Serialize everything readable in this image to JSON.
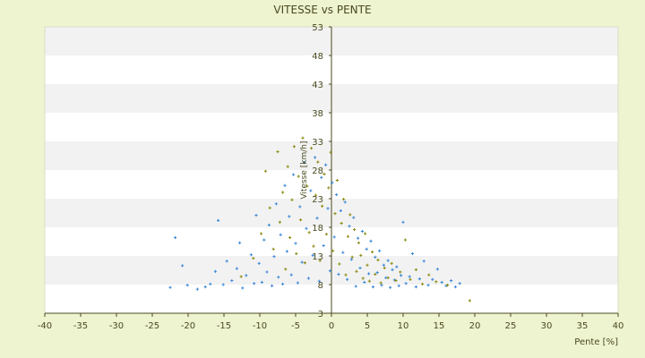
{
  "chart_data": {
    "type": "scatter",
    "title": "VITESSE vs PENTE",
    "xlabel": "Pente [%]",
    "ylabel": "Vitesse [km/h]",
    "xlim": [
      -40,
      40
    ],
    "ylim": [
      3,
      53
    ],
    "x_ticks": [
      -40,
      -35,
      -30,
      -25,
      -20,
      -15,
      -10,
      -5,
      0,
      5,
      10,
      15,
      20,
      25,
      30,
      35,
      40
    ],
    "y_ticks": [
      3,
      8,
      13,
      18,
      23,
      28,
      33,
      38,
      43,
      48,
      53
    ],
    "grid": "horizontal alternating bands",
    "legend": "none",
    "series": [
      {
        "color": "#3a87d6",
        "marker": "plus",
        "values": [
          [
            -22.5,
            7.5
          ],
          [
            -21.8,
            16.2
          ],
          [
            -20.8,
            11.3
          ],
          [
            -20.1,
            7.9
          ],
          [
            -18.7,
            7.2
          ],
          [
            -17.6,
            7.6
          ],
          [
            -16.9,
            8.1
          ],
          [
            -16.2,
            10.3
          ],
          [
            -15.8,
            19.2
          ],
          [
            -15.1,
            8.0
          ],
          [
            -14.6,
            12.1
          ],
          [
            -13.9,
            8.7
          ],
          [
            -13.2,
            10.8
          ],
          [
            -12.8,
            15.3
          ],
          [
            -12.4,
            7.4
          ],
          [
            -11.9,
            9.6
          ],
          [
            -11.2,
            13.2
          ],
          [
            -10.8,
            8.2
          ],
          [
            -10.5,
            20.1
          ],
          [
            -10.1,
            11.7
          ],
          [
            -9.7,
            8.4
          ],
          [
            -9.4,
            15.8
          ],
          [
            -9.0,
            10.2
          ],
          [
            -8.7,
            18.4
          ],
          [
            -8.3,
            7.8
          ],
          [
            -8.0,
            12.9
          ],
          [
            -7.7,
            22.1
          ],
          [
            -7.4,
            9.3
          ],
          [
            -7.1,
            16.7
          ],
          [
            -6.8,
            8.1
          ],
          [
            -6.5,
            25.3
          ],
          [
            -6.2,
            13.8
          ],
          [
            -5.9,
            19.9
          ],
          [
            -5.6,
            9.7
          ],
          [
            -5.3,
            27.2
          ],
          [
            -5.0,
            15.2
          ],
          [
            -4.7,
            8.3
          ],
          [
            -4.4,
            21.6
          ],
          [
            -4.1,
            11.9
          ],
          [
            -3.8,
            29.3
          ],
          [
            -3.5,
            17.8
          ],
          [
            -3.2,
            9.1
          ],
          [
            -2.9,
            24.4
          ],
          [
            -2.6,
            13.1
          ],
          [
            -2.3,
            30.2
          ],
          [
            -2.0,
            19.6
          ],
          [
            -1.7,
            8.6
          ],
          [
            -1.4,
            26.7
          ],
          [
            -1.1,
            14.8
          ],
          [
            -0.8,
            28.9
          ],
          [
            -0.5,
            21.3
          ],
          [
            -0.2,
            10.4
          ],
          [
            0.1,
            25.8
          ],
          [
            0.4,
            16.3
          ],
          [
            0.7,
            23.7
          ],
          [
            1.0,
            9.8
          ],
          [
            1.3,
            20.9
          ],
          [
            1.6,
            13.6
          ],
          [
            1.9,
            22.4
          ],
          [
            2.2,
            8.9
          ],
          [
            2.5,
            18.2
          ],
          [
            2.8,
            12.4
          ],
          [
            3.1,
            19.7
          ],
          [
            3.4,
            7.7
          ],
          [
            3.7,
            16.1
          ],
          [
            4.0,
            10.9
          ],
          [
            4.3,
            17.3
          ],
          [
            4.6,
            8.4
          ],
          [
            4.9,
            14.2
          ],
          [
            5.2,
            9.9
          ],
          [
            5.5,
            15.6
          ],
          [
            5.8,
            7.6
          ],
          [
            6.1,
            12.8
          ],
          [
            6.4,
            10.1
          ],
          [
            6.7,
            13.9
          ],
          [
            7.0,
            7.9
          ],
          [
            7.3,
            11.4
          ],
          [
            7.6,
            9.2
          ],
          [
            7.9,
            12.2
          ],
          [
            8.2,
            7.5
          ],
          [
            8.5,
            10.6
          ],
          [
            8.8,
            8.8
          ],
          [
            9.1,
            11.1
          ],
          [
            9.4,
            7.8
          ],
          [
            9.7,
            9.6
          ],
          [
            10.0,
            18.9
          ],
          [
            10.4,
            8.2
          ],
          [
            10.9,
            9.4
          ],
          [
            11.3,
            13.4
          ],
          [
            11.8,
            7.6
          ],
          [
            12.3,
            9.0
          ],
          [
            12.9,
            12.1
          ],
          [
            13.5,
            7.9
          ],
          [
            14.1,
            8.9
          ],
          [
            14.8,
            10.7
          ],
          [
            15.4,
            8.4
          ],
          [
            16.0,
            7.8
          ],
          [
            16.7,
            8.7
          ],
          [
            17.3,
            7.6
          ],
          [
            17.9,
            8.2
          ]
        ]
      },
      {
        "color": "#8a8a10",
        "marker": "plus",
        "values": [
          [
            -12.6,
            9.4
          ],
          [
            -10.9,
            12.6
          ],
          [
            -9.8,
            16.9
          ],
          [
            -9.2,
            27.8
          ],
          [
            -8.6,
            21.4
          ],
          [
            -8.1,
            14.2
          ],
          [
            -7.5,
            31.2
          ],
          [
            -7.2,
            18.9
          ],
          [
            -6.8,
            24.1
          ],
          [
            -6.4,
            10.7
          ],
          [
            -6.1,
            28.6
          ],
          [
            -5.8,
            16.2
          ],
          [
            -5.5,
            22.8
          ],
          [
            -5.2,
            32.1
          ],
          [
            -4.9,
            13.4
          ],
          [
            -4.6,
            26.9
          ],
          [
            -4.3,
            19.3
          ],
          [
            -4.0,
            33.6
          ],
          [
            -3.7,
            11.8
          ],
          [
            -3.4,
            25.2
          ],
          [
            -3.1,
            17.1
          ],
          [
            -2.8,
            31.8
          ],
          [
            -2.5,
            14.7
          ],
          [
            -2.2,
            23.6
          ],
          [
            -1.9,
            29.4
          ],
          [
            -1.6,
            12.2
          ],
          [
            -1.3,
            21.7
          ],
          [
            -1.0,
            27.3
          ],
          [
            -0.7,
            16.8
          ],
          [
            -0.4,
            24.9
          ],
          [
            -0.1,
            31.1
          ],
          [
            0.2,
            13.9
          ],
          [
            0.5,
            20.4
          ],
          [
            0.8,
            26.2
          ],
          [
            1.1,
            11.6
          ],
          [
            1.4,
            18.7
          ],
          [
            1.7,
            22.9
          ],
          [
            2.0,
            9.7
          ],
          [
            2.3,
            16.4
          ],
          [
            2.6,
            20.2
          ],
          [
            2.9,
            12.8
          ],
          [
            3.2,
            17.6
          ],
          [
            3.5,
            10.3
          ],
          [
            3.8,
            15.3
          ],
          [
            4.1,
            13.1
          ],
          [
            4.4,
            9.1
          ],
          [
            4.7,
            16.9
          ],
          [
            5.0,
            11.4
          ],
          [
            5.3,
            8.6
          ],
          [
            5.7,
            13.7
          ],
          [
            6.1,
            9.8
          ],
          [
            6.5,
            12.3
          ],
          [
            6.9,
            8.3
          ],
          [
            7.4,
            10.9
          ],
          [
            7.9,
            9.2
          ],
          [
            8.4,
            11.7
          ],
          [
            9.0,
            8.7
          ],
          [
            9.6,
            10.2
          ],
          [
            10.3,
            15.8
          ],
          [
            11.0,
            8.9
          ],
          [
            11.8,
            10.6
          ],
          [
            12.7,
            8.1
          ],
          [
            13.6,
            9.7
          ],
          [
            14.6,
            8.5
          ],
          [
            16.2,
            7.9
          ],
          [
            19.3,
            5.2
          ]
        ]
      }
    ]
  }
}
